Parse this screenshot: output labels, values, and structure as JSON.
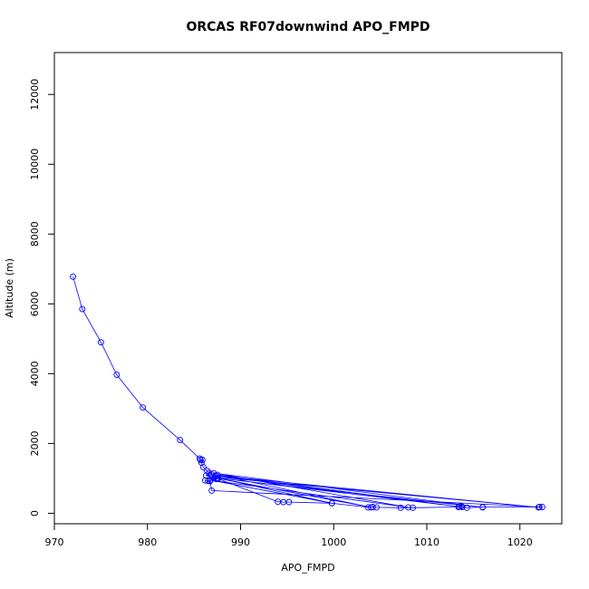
{
  "chart_data": {
    "type": "line",
    "title": "ORCAS RF07downwind APO_FMPD",
    "xlabel": "APO_FMPD",
    "ylabel": "Altitude (m)",
    "xlim": [
      970,
      1024.5
    ],
    "ylim": [
      -300,
      13200
    ],
    "x_ticks": [
      970,
      980,
      990,
      1000,
      1010,
      1020
    ],
    "y_ticks": [
      0,
      2000,
      4000,
      6000,
      8000,
      10000,
      12000
    ],
    "x_tick_labels": [
      "970",
      "980",
      "990",
      "1000",
      "1010",
      "1020"
    ],
    "y_tick_labels": [
      "0",
      "2000",
      "4000",
      "6000",
      "8000",
      "10000",
      "12000"
    ],
    "grid": false,
    "markers": "open-circle",
    "series": [
      {
        "color": "#0000ff",
        "points": [
          [
            972.0,
            6780
          ],
          [
            973.0,
            5850
          ],
          [
            975.0,
            4900
          ],
          [
            976.7,
            3970
          ],
          [
            979.5,
            3030
          ],
          [
            983.5,
            2100
          ],
          [
            985.6,
            1570
          ],
          [
            985.7,
            1530
          ],
          [
            985.9,
            1530
          ],
          [
            985.8,
            1450
          ],
          [
            986.0,
            1320
          ],
          [
            986.4,
            1220
          ],
          [
            986.9,
            1110
          ],
          [
            986.6,
            1160
          ],
          [
            986.3,
            1080
          ],
          [
            987.2,
            1020
          ],
          [
            987.4,
            980
          ],
          [
            986.5,
            930
          ],
          [
            986.2,
            940
          ],
          [
            986.7,
            920
          ],
          [
            986.9,
            650
          ],
          [
            1022.1,
            180
          ],
          [
            1022.4,
            180
          ],
          [
            1016.0,
            180
          ],
          [
            1014.3,
            160
          ],
          [
            1013.7,
            200
          ],
          [
            1013.4,
            180
          ],
          [
            1008.5,
            160
          ],
          [
            1007.2,
            160
          ],
          [
            1004.6,
            170
          ],
          [
            1004.2,
            180
          ],
          [
            1003.7,
            170
          ],
          [
            999.8,
            290
          ],
          [
            995.2,
            320
          ],
          [
            994.6,
            320
          ],
          [
            994.0,
            330
          ],
          [
            987.0,
            1050
          ],
          [
            1022.0,
            170
          ],
          [
            987.3,
            1080
          ],
          [
            1013.5,
            190
          ],
          [
            987.5,
            1100
          ],
          [
            1004.0,
            170
          ],
          [
            987.6,
            1000
          ],
          [
            1016.0,
            170
          ],
          [
            987.1,
            1150
          ],
          [
            1008.0,
            170
          ],
          [
            986.8,
            950
          ],
          [
            999.8,
            290
          ],
          [
            987.5,
            1010
          ],
          [
            1013.8,
            180
          ]
        ]
      }
    ]
  }
}
